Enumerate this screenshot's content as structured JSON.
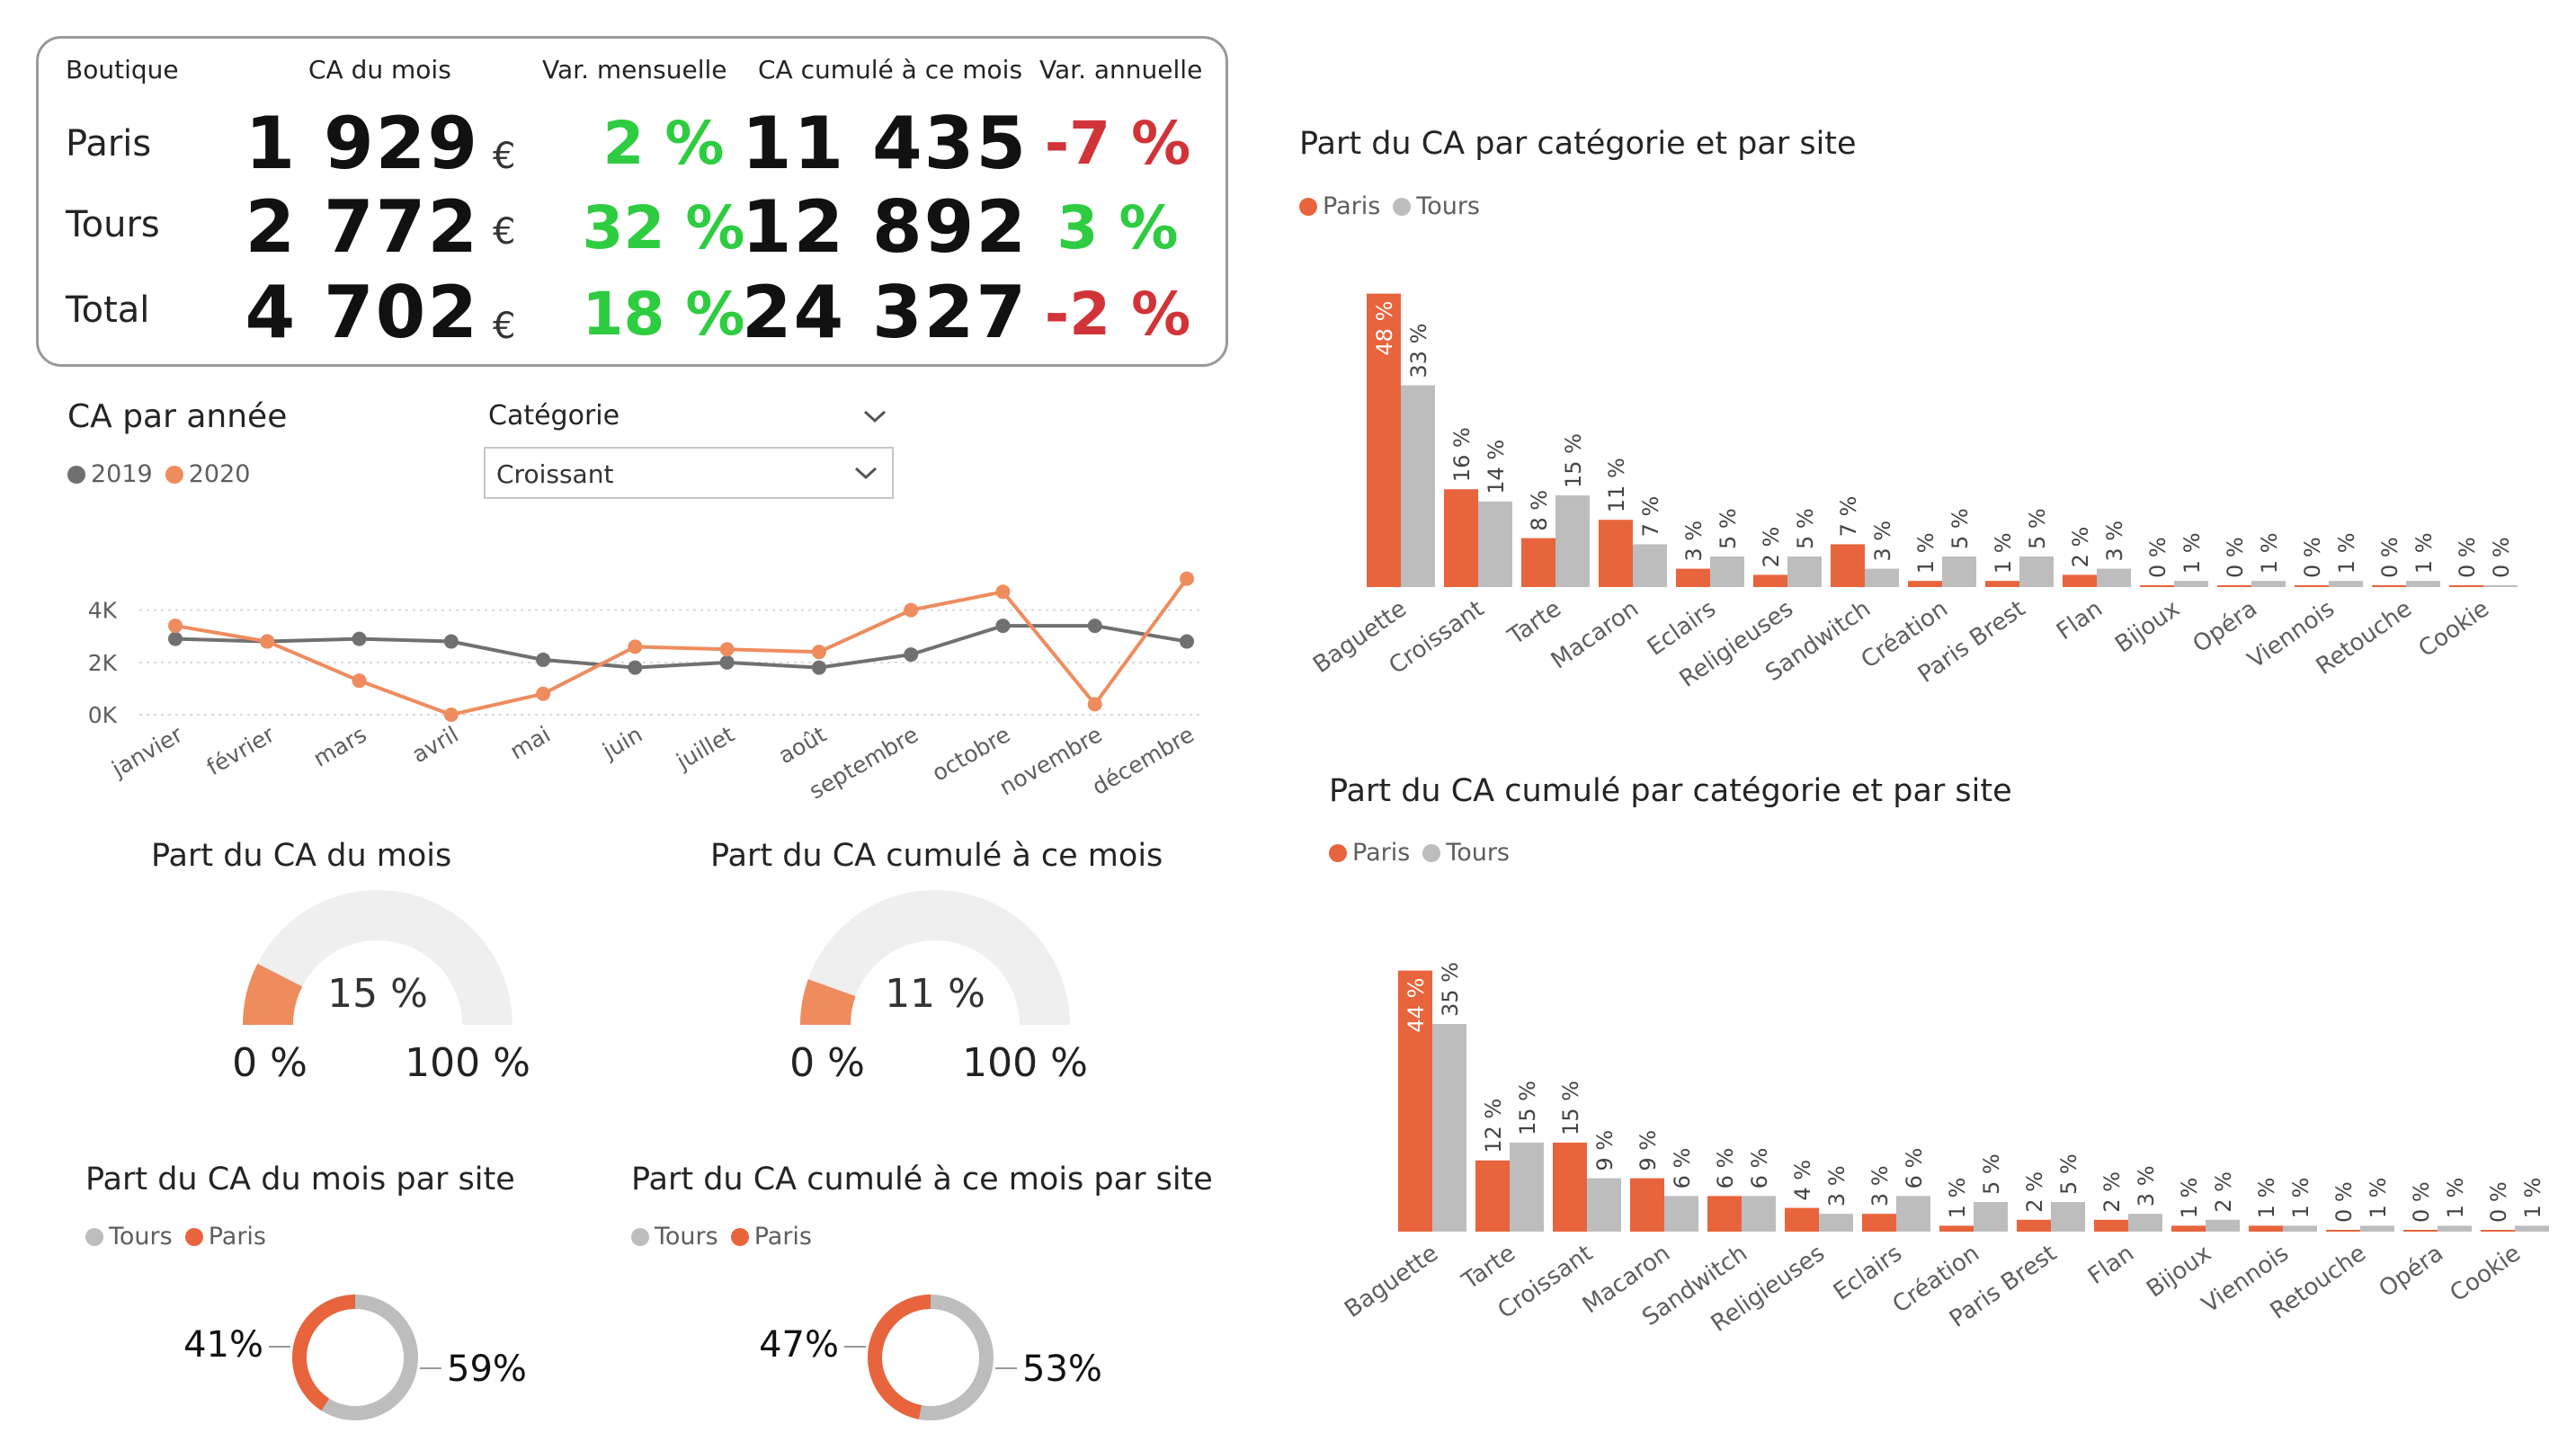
{
  "colors": {
    "paris": "#E8643C",
    "tours": "#BDBDBD",
    "y2019": "#707070",
    "y2020": "#EE8C5E",
    "positive": "#2ECC40",
    "negative": "#D13438",
    "gauge_fill": "#EE8C5E",
    "gauge_bg": "#EFEFEF"
  },
  "kpi": {
    "headers": {
      "boutique": "Boutique",
      "ca_mois": "CA du mois",
      "var_mens": "Var. mensuelle",
      "ca_cumul": "CA cumulé à ce mois",
      "var_ann": "Var. annuelle"
    },
    "rows": [
      {
        "label": "Paris",
        "ca": "1 929",
        "currency": "€",
        "var_mens": "2 %",
        "cumul": "11 435",
        "var_ann": "-7 %"
      },
      {
        "label": "Tours",
        "ca": "2 772",
        "currency": "€",
        "var_mens": "32 %",
        "cumul": "12 892",
        "var_ann": "3 %"
      },
      {
        "label": "Total",
        "ca": "4 702",
        "currency": "€",
        "var_mens": "18 %",
        "cumul": "24 327",
        "var_ann": "-2 %"
      }
    ]
  },
  "line_section": {
    "title": "CA par année"
  },
  "slicer": {
    "label": "Catégorie",
    "selected": "Croissant"
  },
  "chart_data": [
    {
      "type": "line",
      "title": "CA par année",
      "x": [
        "janvier",
        "février",
        "mars",
        "avril",
        "mai",
        "juin",
        "juillet",
        "août",
        "septembre",
        "octobre",
        "novembre",
        "décembre"
      ],
      "series": [
        {
          "name": "2019",
          "values": [
            2900,
            2800,
            2900,
            2800,
            2100,
            1800,
            2000,
            1800,
            2300,
            3400,
            3400,
            2800
          ]
        },
        {
          "name": "2020",
          "values": [
            3400,
            2800,
            1300,
            0,
            800,
            2600,
            2500,
            2400,
            4000,
            4700,
            400,
            5200
          ]
        }
      ],
      "yticks": [
        "0K",
        "2K",
        "4K"
      ],
      "ylim": [
        0,
        5500
      ]
    },
    {
      "type": "bar",
      "title": "Part du CA par catégorie et par site",
      "categories": [
        "Baguette",
        "Croissant",
        "Tarte",
        "Macaron",
        "Eclairs",
        "Religieuses",
        "Sandwitch",
        "Création",
        "Paris Brest",
        "Flan",
        "Bijoux",
        "Opéra",
        "Viennois",
        "Retouche",
        "Cookie"
      ],
      "series": [
        {
          "name": "Paris",
          "values": [
            48,
            16,
            8,
            11,
            3,
            2,
            7,
            1,
            1,
            2,
            0,
            0,
            0,
            0,
            0
          ]
        },
        {
          "name": "Tours",
          "values": [
            33,
            14,
            15,
            7,
            5,
            5,
            3,
            5,
            5,
            3,
            1,
            1,
            1,
            1,
            0
          ]
        }
      ],
      "value_suffix": " %"
    },
    {
      "type": "bar",
      "title": "Part du CA cumulé par catégorie et par site",
      "categories": [
        "Baguette",
        "Tarte",
        "Croissant",
        "Macaron",
        "Sandwitch",
        "Religieuses",
        "Eclairs",
        "Création",
        "Paris Brest",
        "Flan",
        "Bijoux",
        "Viennois",
        "Retouche",
        "Opéra",
        "Cookie"
      ],
      "series": [
        {
          "name": "Paris",
          "values": [
            44,
            12,
            15,
            9,
            6,
            4,
            3,
            1,
            2,
            2,
            1,
            1,
            0,
            0,
            0
          ]
        },
        {
          "name": "Tours",
          "values": [
            35,
            15,
            9,
            6,
            6,
            3,
            6,
            5,
            5,
            3,
            2,
            1,
            1,
            1,
            1
          ]
        }
      ],
      "value_suffix": " %"
    },
    {
      "type": "gauge",
      "title": "Part du CA du mois",
      "value": 15,
      "min": 0,
      "max": 100,
      "value_label": "15 %",
      "min_label": "0 %",
      "max_label": "100 %"
    },
    {
      "type": "gauge",
      "title": "Part du CA cumulé à ce mois",
      "value": 11,
      "min": 0,
      "max": 100,
      "value_label": "11 %",
      "min_label": "0 %",
      "max_label": "100 %"
    },
    {
      "type": "pie",
      "title": "Part du CA du mois par site",
      "legend": [
        "Tours",
        "Paris"
      ],
      "slices": [
        {
          "name": "Paris",
          "value": 41,
          "label": "41%"
        },
        {
          "name": "Tours",
          "value": 59,
          "label": "59%"
        }
      ]
    },
    {
      "type": "pie",
      "title": "Part du CA cumulé à ce mois par site",
      "legend": [
        "Tours",
        "Paris"
      ],
      "slices": [
        {
          "name": "Paris",
          "value": 47,
          "label": "47%"
        },
        {
          "name": "Tours",
          "value": 53,
          "label": "53%"
        }
      ]
    }
  ]
}
